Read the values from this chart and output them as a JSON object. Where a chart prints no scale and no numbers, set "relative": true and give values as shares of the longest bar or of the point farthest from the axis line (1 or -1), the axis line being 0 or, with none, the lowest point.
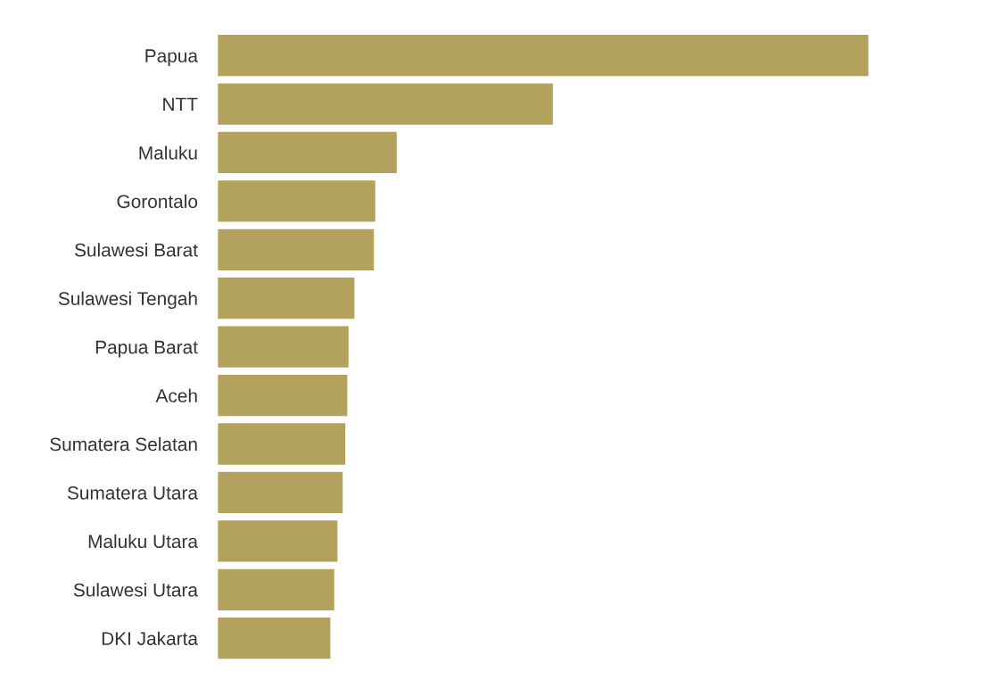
{
  "chart_data": {
    "type": "bar",
    "orientation": "horizontal",
    "relative": true,
    "categories": [
      "Papua",
      "NTT",
      "Maluku",
      "Gorontalo",
      "Sulawesi Barat",
      "Sulawesi Tengah",
      "Papua Barat",
      "Aceh",
      "Sumatera Selatan",
      "Sumatera Utara",
      "Maluku Utara",
      "Sulawesi Utara",
      "DKI Jakarta"
    ],
    "values": [
      1,
      0.515,
      0.275,
      0.242,
      0.24,
      0.21,
      0.201,
      0.199,
      0.196,
      0.192,
      0.184,
      0.179,
      0.173
    ],
    "color": "#b3a25e",
    "legend": false
  }
}
